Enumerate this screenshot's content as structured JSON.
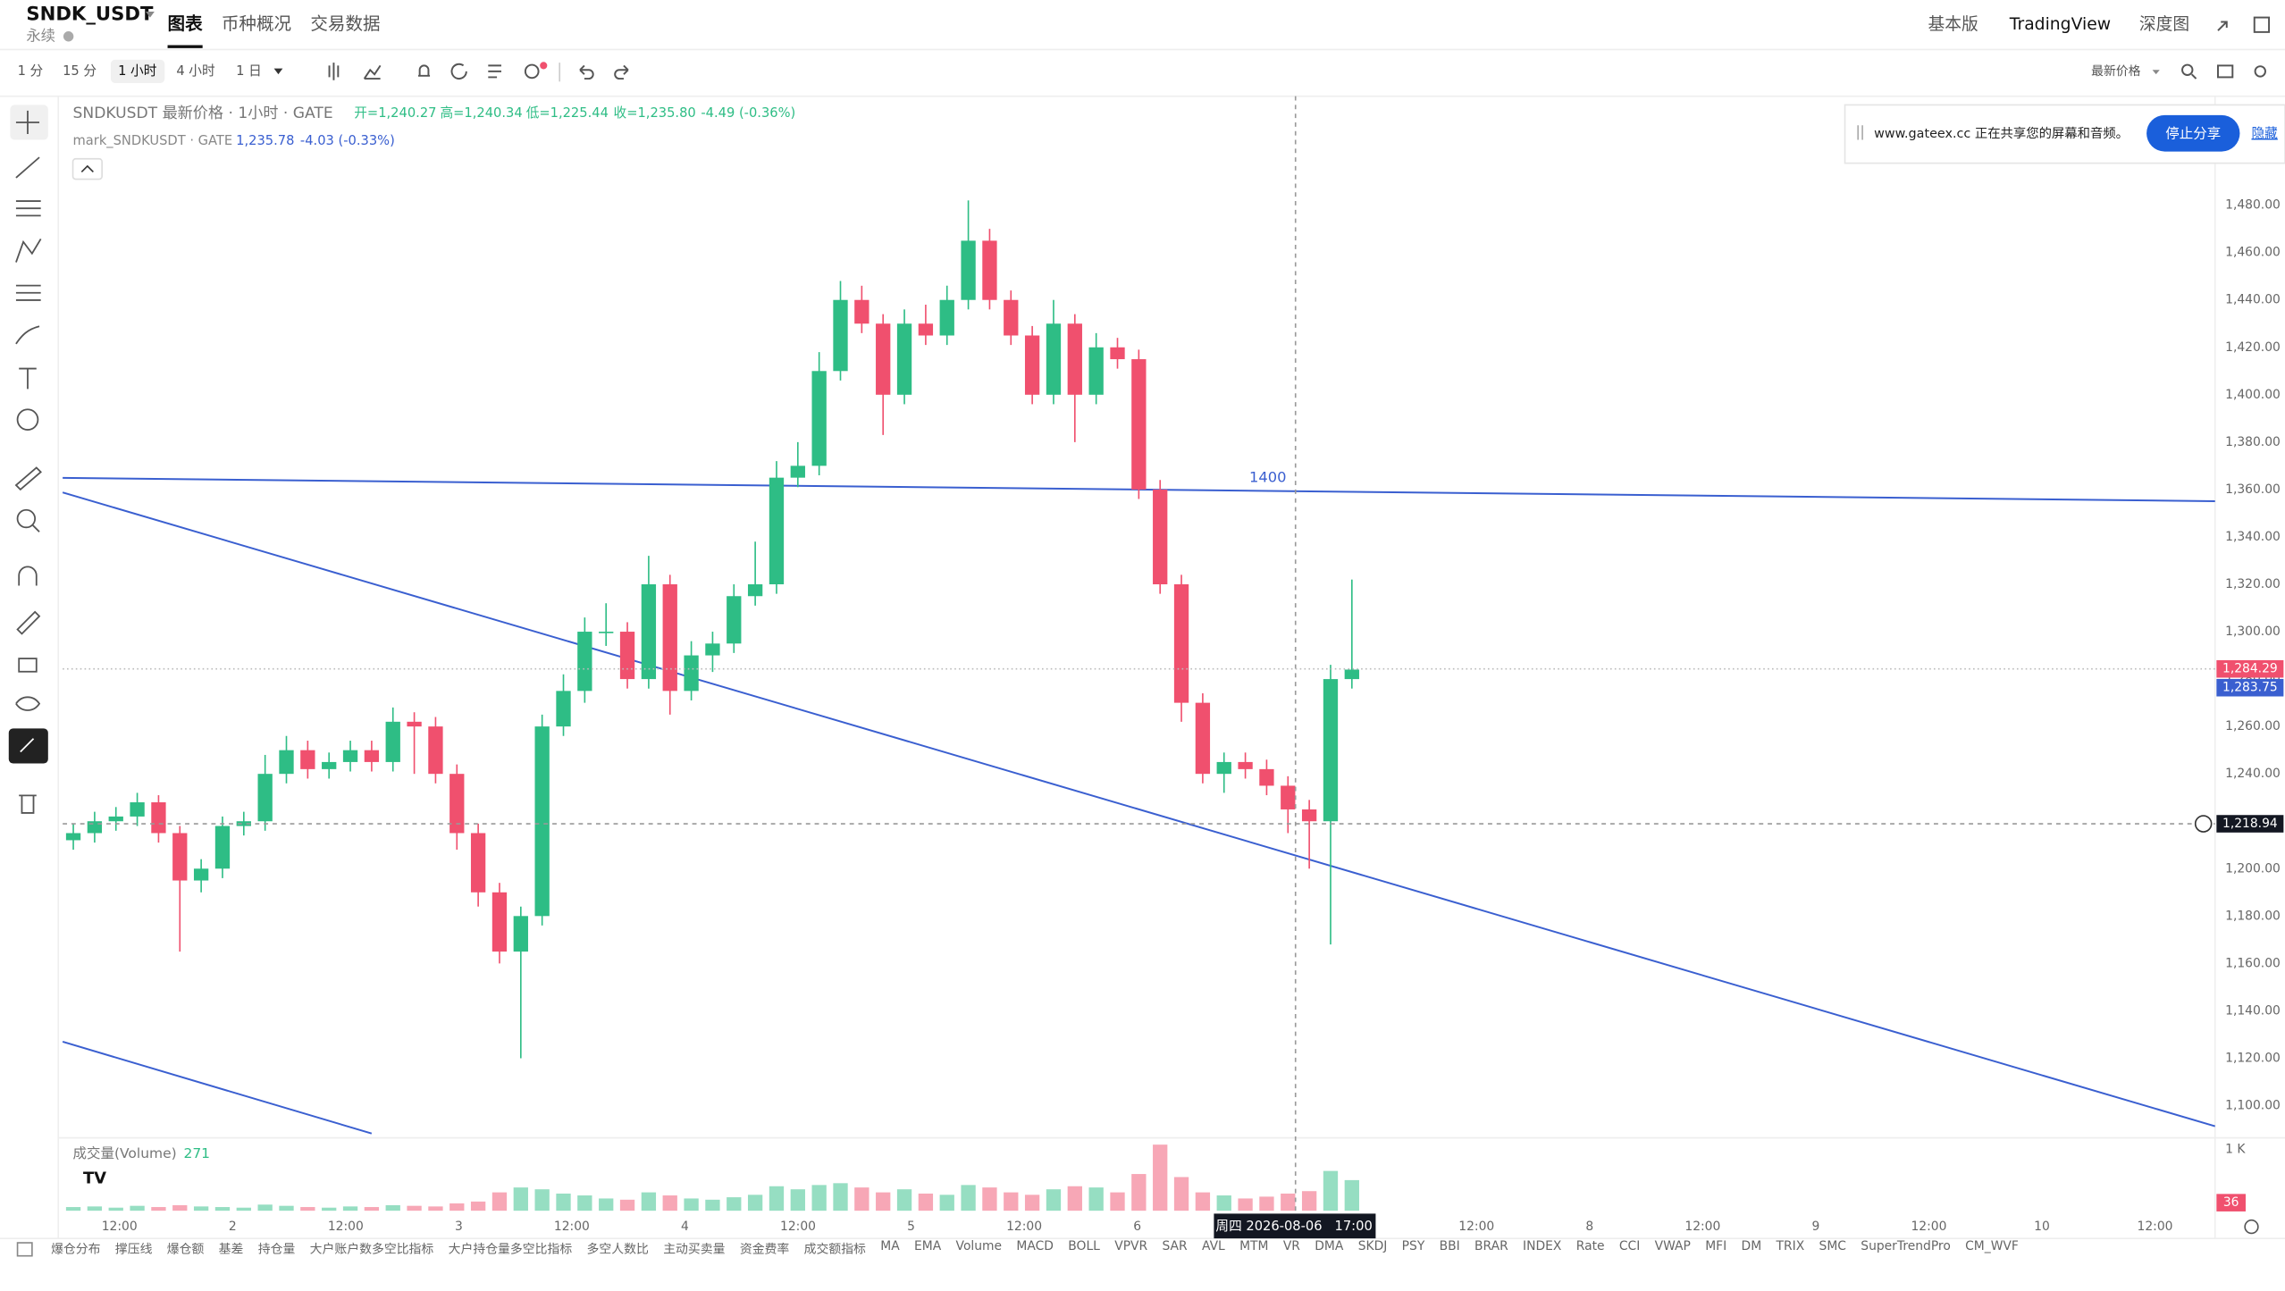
{
  "header": {
    "symbol": "SNDK_USDT",
    "contract": "永续",
    "tabs": [
      "图表",
      "币种概况",
      "交易数据"
    ],
    "right_links": [
      "基本版",
      "TradingView",
      "深度图"
    ]
  },
  "toolbar": {
    "intervals": [
      "1 分",
      "15 分",
      "1 小时",
      "4 小时",
      "1 日"
    ],
    "active_interval": 2,
    "price_source": "最新价格"
  },
  "share_popup": {
    "message": "www.gateex.cc 正在共享您的屏幕和音频。",
    "stop_button": "停止分享",
    "hide_link": "隐藏"
  },
  "legend": {
    "title": "SNDKUSDT 最新价格 · 1小时 · GATE",
    "ohlc": [
      "开=1,240.27",
      "高=1,240.34",
      "低=1,225.44",
      "收=1,235.80"
    ],
    "change": "-4.49 (-0.36%)",
    "mark_title": "mark_SNDKUSDT · GATE",
    "mark_price": "1,235.78",
    "mark_change": "-4.03 (-0.33%)"
  },
  "chart_data": {
    "type": "candlestick",
    "colors": {
      "up": "#2ebd85",
      "down": "#f0506e",
      "line": "#3a5fd0"
    },
    "candles": [
      [
        1212,
        1219,
        1208,
        1215
      ],
      [
        1215,
        1224,
        1211,
        1220
      ],
      [
        1220,
        1226,
        1216,
        1222
      ],
      [
        1222,
        1232,
        1218,
        1228
      ],
      [
        1228,
        1231,
        1211,
        1215
      ],
      [
        1215,
        1218,
        1165,
        1195
      ],
      [
        1195,
        1204,
        1190,
        1200
      ],
      [
        1200,
        1222,
        1196,
        1218
      ],
      [
        1218,
        1224,
        1214,
        1220
      ],
      [
        1220,
        1248,
        1216,
        1240
      ],
      [
        1240,
        1256,
        1236,
        1250
      ],
      [
        1250,
        1254,
        1238,
        1242
      ],
      [
        1242,
        1249,
        1238,
        1245
      ],
      [
        1245,
        1254,
        1241,
        1250
      ],
      [
        1250,
        1254,
        1241,
        1245
      ],
      [
        1245,
        1268,
        1241,
        1262
      ],
      [
        1262,
        1266,
        1240,
        1260
      ],
      [
        1260,
        1264,
        1236,
        1240
      ],
      [
        1240,
        1244,
        1208,
        1215
      ],
      [
        1215,
        1219,
        1184,
        1190
      ],
      [
        1190,
        1194,
        1160,
        1165
      ],
      [
        1165,
        1184,
        1120,
        1180
      ],
      [
        1180,
        1265,
        1176,
        1260
      ],
      [
        1260,
        1282,
        1256,
        1275
      ],
      [
        1275,
        1306,
        1270,
        1300
      ],
      [
        1300,
        1312,
        1294,
        1300
      ],
      [
        1300,
        1304,
        1276,
        1280
      ],
      [
        1280,
        1332,
        1276,
        1320
      ],
      [
        1320,
        1324,
        1265,
        1275
      ],
      [
        1275,
        1296,
        1271,
        1290
      ],
      [
        1290,
        1300,
        1283,
        1295
      ],
      [
        1295,
        1320,
        1291,
        1315
      ],
      [
        1315,
        1338,
        1311,
        1320
      ],
      [
        1320,
        1372,
        1316,
        1365
      ],
      [
        1365,
        1380,
        1361,
        1370
      ],
      [
        1370,
        1418,
        1366,
        1410
      ],
      [
        1410,
        1448,
        1406,
        1440
      ],
      [
        1440,
        1446,
        1426,
        1430
      ],
      [
        1430,
        1434,
        1383,
        1400
      ],
      [
        1400,
        1436,
        1396,
        1430
      ],
      [
        1430,
        1438,
        1421,
        1425
      ],
      [
        1425,
        1446,
        1421,
        1440
      ],
      [
        1440,
        1482,
        1436,
        1465
      ],
      [
        1465,
        1470,
        1436,
        1440
      ],
      [
        1440,
        1444,
        1421,
        1425
      ],
      [
        1425,
        1429,
        1396,
        1400
      ],
      [
        1400,
        1440,
        1396,
        1430
      ],
      [
        1430,
        1434,
        1380,
        1400
      ],
      [
        1400,
        1426,
        1396,
        1420
      ],
      [
        1420,
        1424,
        1411,
        1415
      ],
      [
        1415,
        1419,
        1356,
        1360
      ],
      [
        1360,
        1364,
        1316,
        1320
      ],
      [
        1320,
        1324,
        1262,
        1270
      ],
      [
        1270,
        1274,
        1236,
        1240
      ],
      [
        1240,
        1249,
        1232,
        1245
      ],
      [
        1245,
        1249,
        1238,
        1242
      ],
      [
        1242,
        1246,
        1231,
        1235
      ],
      [
        1235,
        1239,
        1215,
        1225
      ],
      [
        1225,
        1229,
        1200,
        1220
      ],
      [
        1220,
        1286,
        1168,
        1280
      ],
      [
        1280,
        1322,
        1276,
        1284
      ]
    ],
    "ylim": [
      1087,
      1526
    ],
    "yticks": [
      {
        "value": 1100,
        "label": "1,100.00"
      },
      {
        "value": 1120,
        "label": "1,120.00"
      },
      {
        "value": 1140,
        "label": "1,140.00"
      },
      {
        "value": 1160,
        "label": "1,160.00"
      },
      {
        "value": 1180,
        "label": "1,180.00"
      },
      {
        "value": 1200,
        "label": "1,200.00"
      },
      {
        "value": 1220,
        "label": "1,220.00"
      },
      {
        "value": 1240,
        "label": "1,240.00"
      },
      {
        "value": 1260,
        "label": "1,260.00"
      },
      {
        "value": 1280,
        "label": "1,280.00"
      },
      {
        "value": 1300,
        "label": "1,300.00"
      },
      {
        "value": 1320,
        "label": "1,320.00"
      },
      {
        "value": 1340,
        "label": "1,340.00"
      },
      {
        "value": 1360,
        "label": "1,360.00"
      },
      {
        "value": 1380,
        "label": "1,380.00"
      },
      {
        "value": 1400,
        "label": "1,400.00"
      },
      {
        "value": 1420,
        "label": "1,420.00"
      },
      {
        "value": 1440,
        "label": "1,440.00"
      },
      {
        "value": 1460,
        "label": "1,460.00"
      },
      {
        "value": 1480,
        "label": "1,480.00"
      }
    ],
    "x_labels": [
      "12:00",
      "2",
      "12:00",
      "3",
      "12:00",
      "4",
      "12:00",
      "5",
      "12:00",
      "6",
      null,
      null,
      "12:00",
      "8",
      "12:00",
      "9",
      "12:00",
      "10",
      "12:00"
    ],
    "crosshair_time": "周四 2026-08-06   17:00",
    "price_labels": {
      "last": {
        "value": 1284.29,
        "label": "1,284.29"
      },
      "mark": {
        "value": 1283.75,
        "label": "1,283.75"
      },
      "crosshair": {
        "value": 1218.94,
        "label": "1,218.94"
      }
    },
    "drawing_label": "1400",
    "volume": {
      "label": "成交量(Volume)",
      "current": 271,
      "last": 36,
      "ylim": [
        0,
        1000
      ],
      "ticks": [
        {
          "value": 1000,
          "label": "1 K"
        }
      ],
      "values": [
        60,
        70,
        50,
        80,
        60,
        90,
        70,
        60,
        50,
        100,
        80,
        60,
        50,
        70,
        60,
        90,
        80,
        70,
        120,
        150,
        300,
        380,
        350,
        280,
        250,
        200,
        180,
        300,
        250,
        200,
        180,
        220,
        260,
        400,
        350,
        420,
        450,
        380,
        300,
        350,
        280,
        260,
        420,
        380,
        300,
        260,
        350,
        400,
        380,
        300,
        600,
        1080,
        550,
        300,
        250,
        200,
        230,
        280,
        320,
        650,
        500
      ]
    }
  },
  "indicators": [
    "爆仓分布",
    "撑压线",
    "爆仓额",
    "基差",
    "持仓量",
    "大户账户数多空比指标",
    "大户持仓量多空比指标",
    "多空人数比",
    "主动买卖量",
    "资金费率",
    "成交额指标",
    "MA",
    "EMA",
    "Volume",
    "MACD",
    "BOLL",
    "VPVR",
    "SAR",
    "AVL",
    "MTM",
    "VR",
    "DMA",
    "SKDJ",
    "PSY",
    "BBI",
    "BRAR",
    "INDEX",
    "Rate",
    "CCI",
    "VWAP",
    "MFI",
    "DM",
    "TRIX",
    "SMC",
    "SuperTrendPro",
    "CM_WVF"
  ]
}
